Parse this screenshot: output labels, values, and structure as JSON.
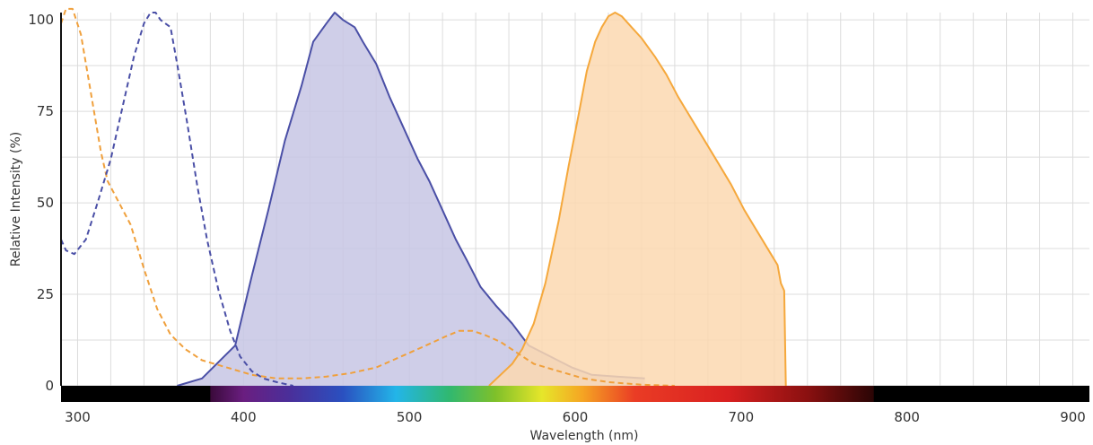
{
  "chart_data": {
    "type": "area",
    "title": "",
    "xlabel": "Wavelength (nm)",
    "ylabel": "Relative Intensity (%)",
    "xlim": [
      290,
      910
    ],
    "ylim": [
      0,
      102
    ],
    "x_ticks": [
      300,
      400,
      500,
      600,
      700,
      800,
      900
    ],
    "y_ticks": [
      0,
      25,
      50,
      75,
      100
    ],
    "x_tick_labels": [
      "300",
      "400",
      "500",
      "600",
      "700",
      "800",
      "900"
    ],
    "y_tick_labels": [
      "0",
      "25",
      "50",
      "75",
      "100"
    ],
    "grid": true,
    "legend": "none",
    "spectrum_bar": {
      "visible_start_nm": 380,
      "visible_end_nm": 780
    },
    "series": [
      {
        "role": "excitation-blue",
        "style": "dashed",
        "color": "#4a4fa6",
        "points": [
          [
            290,
            40
          ],
          [
            293,
            37
          ],
          [
            298,
            36
          ],
          [
            305,
            40
          ],
          [
            312,
            50
          ],
          [
            320,
            62
          ],
          [
            328,
            78
          ],
          [
            334,
            90
          ],
          [
            340,
            99
          ],
          [
            344,
            102
          ],
          [
            347,
            102
          ],
          [
            350,
            100
          ],
          [
            356,
            98
          ],
          [
            360,
            88
          ],
          [
            366,
            72
          ],
          [
            372,
            55
          ],
          [
            378,
            40
          ],
          [
            385,
            26
          ],
          [
            392,
            15
          ],
          [
            398,
            8
          ],
          [
            405,
            4
          ],
          [
            412,
            2
          ],
          [
            420,
            1
          ],
          [
            430,
            0
          ]
        ]
      },
      {
        "role": "emission-blue",
        "style": "solid-filled",
        "color": "#4a4fa6",
        "fill": "#c7c5e4",
        "points": [
          [
            360,
            0
          ],
          [
            375,
            2
          ],
          [
            395,
            11
          ],
          [
            405,
            30
          ],
          [
            415,
            48
          ],
          [
            425,
            67
          ],
          [
            435,
            82
          ],
          [
            442,
            94
          ],
          [
            450,
            99
          ],
          [
            455,
            102
          ],
          [
            460,
            100
          ],
          [
            467,
            98
          ],
          [
            472,
            94
          ],
          [
            480,
            88
          ],
          [
            488,
            79
          ],
          [
            496,
            71
          ],
          [
            505,
            62
          ],
          [
            512,
            56
          ],
          [
            520,
            48
          ],
          [
            528,
            40
          ],
          [
            535,
            34
          ],
          [
            543,
            27
          ],
          [
            552,
            22
          ],
          [
            562,
            17
          ],
          [
            572,
            11
          ],
          [
            585,
            8
          ],
          [
            598,
            5
          ],
          [
            610,
            3
          ],
          [
            625,
            2.5
          ],
          [
            642,
            2
          ]
        ]
      },
      {
        "role": "excitation-orange",
        "style": "dashed",
        "color": "#f0a03c",
        "points": [
          [
            290,
            99
          ],
          [
            293,
            103
          ],
          [
            297,
            103
          ],
          [
            302,
            96
          ],
          [
            308,
            80
          ],
          [
            314,
            64
          ],
          [
            318,
            56
          ],
          [
            325,
            50
          ],
          [
            332,
            44
          ],
          [
            340,
            32
          ],
          [
            348,
            21
          ],
          [
            356,
            14
          ],
          [
            365,
            10
          ],
          [
            375,
            7
          ],
          [
            390,
            5
          ],
          [
            405,
            3
          ],
          [
            420,
            2
          ],
          [
            435,
            2
          ],
          [
            450,
            2.5
          ],
          [
            465,
            3.5
          ],
          [
            480,
            5
          ],
          [
            495,
            8
          ],
          [
            510,
            11
          ],
          [
            522,
            13.5
          ],
          [
            530,
            15
          ],
          [
            538,
            15
          ],
          [
            545,
            14
          ],
          [
            555,
            12
          ],
          [
            565,
            9
          ],
          [
            575,
            6
          ],
          [
            590,
            4
          ],
          [
            605,
            2
          ],
          [
            620,
            1
          ],
          [
            640,
            0.3
          ],
          [
            660,
            0
          ]
        ]
      },
      {
        "role": "emission-orange",
        "style": "solid-filled",
        "color": "#f5a83c",
        "fill": "#fbd8b0",
        "points": [
          [
            548,
            0
          ],
          [
            555,
            3
          ],
          [
            562,
            6
          ],
          [
            568,
            10
          ],
          [
            575,
            17
          ],
          [
            582,
            28
          ],
          [
            590,
            45
          ],
          [
            596,
            60
          ],
          [
            602,
            74
          ],
          [
            607,
            86
          ],
          [
            612,
            94
          ],
          [
            616,
            98
          ],
          [
            620,
            101
          ],
          [
            624,
            102
          ],
          [
            628,
            101
          ],
          [
            634,
            98
          ],
          [
            640,
            95
          ],
          [
            648,
            90
          ],
          [
            655,
            85
          ],
          [
            662,
            79
          ],
          [
            670,
            73
          ],
          [
            678,
            67
          ],
          [
            686,
            61
          ],
          [
            694,
            55
          ],
          [
            702,
            48
          ],
          [
            710,
            42
          ],
          [
            718,
            36
          ],
          [
            722,
            33
          ],
          [
            724,
            28
          ],
          [
            726,
            26
          ],
          [
            727,
            0
          ]
        ]
      }
    ]
  }
}
